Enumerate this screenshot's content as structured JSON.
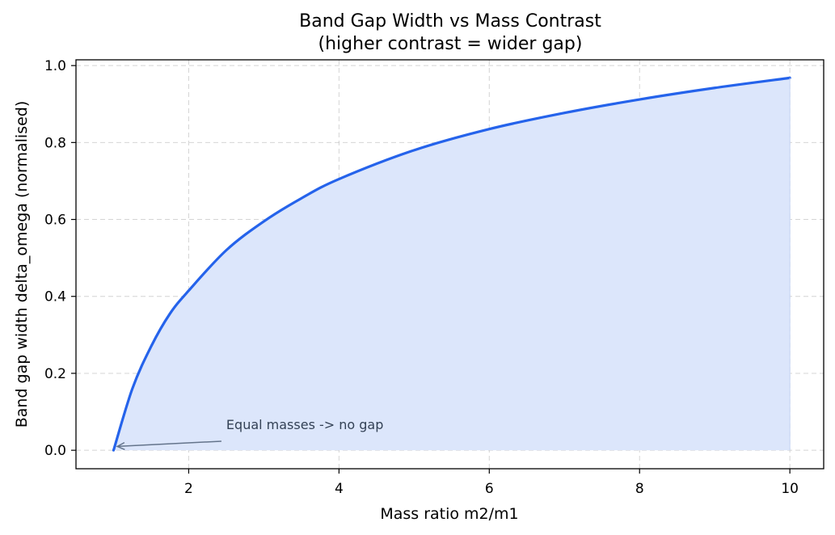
{
  "chart_data": {
    "type": "area",
    "title_line1": "Band Gap Width vs Mass Contrast",
    "title_line2": "(higher contrast = wider gap)",
    "xlabel": "Mass ratio  m2/m1",
    "ylabel": "Band gap width  delta_omega  (normalised)",
    "xlim": [
      0.5,
      10.45
    ],
    "ylim": [
      -0.048,
      1.015
    ],
    "x_ticks": [
      2,
      4,
      6,
      8,
      10
    ],
    "y_ticks": [
      0.0,
      0.2,
      0.4,
      0.6,
      0.8,
      1.0
    ],
    "x_tick_labels": [
      "2",
      "4",
      "6",
      "8",
      "10"
    ],
    "y_tick_labels": [
      "0.0",
      "0.2",
      "0.4",
      "0.6",
      "0.8",
      "1.0"
    ],
    "grid": true,
    "series": [
      {
        "x": [
          1.0,
          1.25,
          1.5,
          1.75,
          2.0,
          2.5,
          3.0,
          3.5,
          4.0,
          5.0,
          6.0,
          7.0,
          8.0,
          9.0,
          10.0
        ],
        "y": [
          0.0,
          0.16,
          0.27,
          0.355,
          0.415,
          0.52,
          0.595,
          0.655,
          0.705,
          0.78,
          0.835,
          0.877,
          0.912,
          0.942,
          0.968
        ],
        "color": "#2563eb",
        "fill_color": "#dce6fb"
      }
    ],
    "annotation": {
      "text": "Equal masses -> no gap",
      "point": [
        1.05,
        0.01
      ],
      "text_pos": [
        2.5,
        0.055
      ],
      "color": "#64748b"
    }
  }
}
